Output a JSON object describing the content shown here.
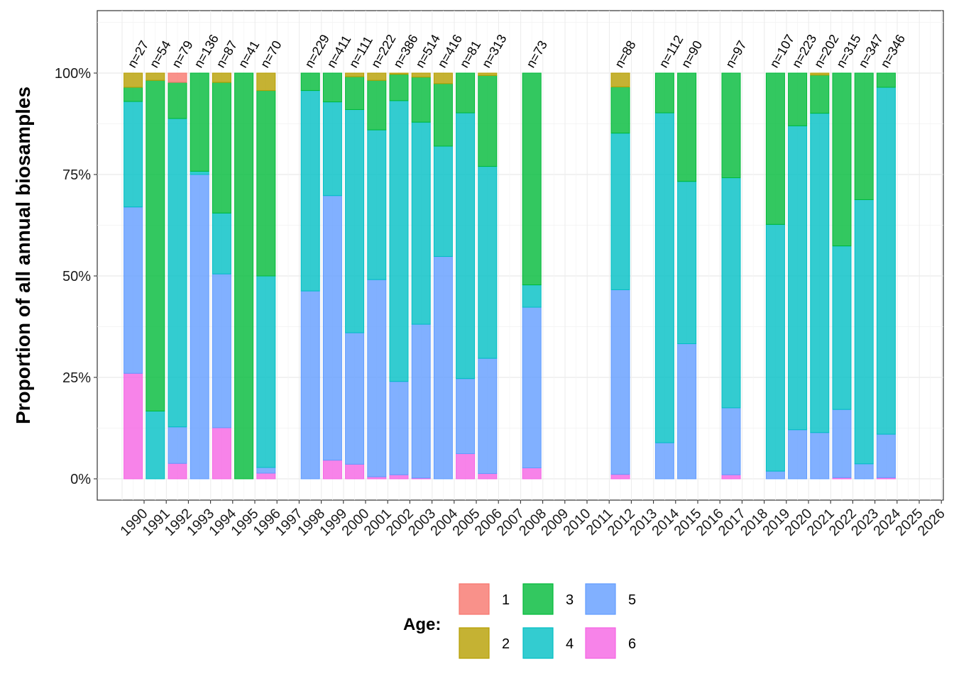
{
  "chart_data": {
    "type": "bar",
    "stacked": true,
    "title": "",
    "xlabel": "",
    "ylabel": "Proportion of all annual biosamples",
    "ylim": [
      0,
      1
    ],
    "yticks": [
      0,
      0.25,
      0.5,
      0.75,
      1
    ],
    "ytick_labels": [
      "0%",
      "25%",
      "50%",
      "75%",
      "100%"
    ],
    "x_categories": [
      "1990",
      "1991",
      "1992",
      "1993",
      "1994",
      "1995",
      "1996",
      "1997",
      "1998",
      "1999",
      "2000",
      "2001",
      "2002",
      "2003",
      "2004",
      "2005",
      "2006",
      "2007",
      "2008",
      "2009",
      "2010",
      "2011",
      "2012",
      "2013",
      "2014",
      "2015",
      "2016",
      "2017",
      "2018",
      "2019",
      "2020",
      "2021",
      "2022",
      "2023",
      "2024",
      "2025",
      "2026"
    ],
    "grid": true,
    "legend": {
      "title": "Age:",
      "position": "bottom",
      "entries": [
        {
          "key": "1",
          "label": "1",
          "color": "#F8766D"
        },
        {
          "key": "2",
          "label": "2",
          "color": "#B79F00"
        },
        {
          "key": "3",
          "label": "3",
          "color": "#00BA38"
        },
        {
          "key": "4",
          "label": "4",
          "color": "#00BFC4"
        },
        {
          "key": "5",
          "label": "5",
          "color": "#619CFF"
        },
        {
          "key": "6",
          "label": "6",
          "color": "#F564E3"
        }
      ]
    },
    "series_order_bottom_to_top": [
      "6",
      "5",
      "4",
      "3",
      "2",
      "1"
    ],
    "bars": [
      {
        "x": 0.5,
        "n_label": "n=27",
        "parts": {
          "6": 0.26,
          "5": 0.41,
          "4": 0.26,
          "3": 0.035,
          "2": 0.035,
          "1": 0
        }
      },
      {
        "x": 1.5,
        "n_label": "n=54",
        "parts": {
          "6": 0,
          "5": 0,
          "4": 0.167,
          "3": 0.815,
          "2": 0.018,
          "1": 0
        }
      },
      {
        "x": 2.5,
        "n_label": "n=79",
        "parts": {
          "6": 0.038,
          "5": 0.09,
          "4": 0.76,
          "3": 0.089,
          "2": 0,
          "1": 0.023
        }
      },
      {
        "x": 3.5,
        "n_label": "n=136",
        "parts": {
          "6": 0,
          "5": 0.75,
          "4": 0.008,
          "3": 0.242,
          "2": 0,
          "1": 0
        }
      },
      {
        "x": 4.5,
        "n_label": "n=87",
        "parts": {
          "6": 0.126,
          "5": 0.379,
          "4": 0.15,
          "3": 0.322,
          "2": 0.023,
          "1": 0
        }
      },
      {
        "x": 5.5,
        "n_label": "n=41",
        "parts": {
          "6": 0,
          "5": 0,
          "4": 0,
          "3": 1.0,
          "2": 0,
          "1": 0
        }
      },
      {
        "x": 6.5,
        "n_label": "n=70",
        "parts": {
          "6": 0.014,
          "5": 0.014,
          "4": 0.472,
          "3": 0.457,
          "2": 0.043,
          "1": 0
        }
      },
      {
        "x": 8.5,
        "n_label": "n=229",
        "parts": {
          "6": 0,
          "5": 0.463,
          "4": 0.494,
          "3": 0.043,
          "2": 0,
          "1": 0
        }
      },
      {
        "x": 9.5,
        "n_label": "n=411",
        "parts": {
          "6": 0.046,
          "5": 0.652,
          "4": 0.231,
          "3": 0.071,
          "2": 0,
          "1": 0
        }
      },
      {
        "x": 10.5,
        "n_label": "n=111",
        "parts": {
          "6": 0.036,
          "5": 0.324,
          "4": 0.55,
          "3": 0.081,
          "2": 0.009,
          "1": 0
        }
      },
      {
        "x": 11.5,
        "n_label": "n=222",
        "parts": {
          "6": 0.005,
          "5": 0.486,
          "4": 0.369,
          "3": 0.122,
          "2": 0.018,
          "1": 0
        }
      },
      {
        "x": 12.5,
        "n_label": "n=386",
        "parts": {
          "6": 0.01,
          "5": 0.23,
          "4": 0.692,
          "3": 0.065,
          "2": 0.003,
          "1": 0
        }
      },
      {
        "x": 13.5,
        "n_label": "n=514",
        "parts": {
          "6": 0.002,
          "5": 0.379,
          "4": 0.498,
          "3": 0.111,
          "2": 0.01,
          "1": 0
        }
      },
      {
        "x": 14.5,
        "n_label": "n=416",
        "parts": {
          "6": 0,
          "5": 0.548,
          "4": 0.272,
          "3": 0.154,
          "2": 0.026,
          "1": 0
        }
      },
      {
        "x": 15.5,
        "n_label": "n=81",
        "parts": {
          "6": 0.062,
          "5": 0.185,
          "4": 0.655,
          "3": 0.098,
          "2": 0,
          "1": 0
        }
      },
      {
        "x": 16.5,
        "n_label": "n=313",
        "parts": {
          "6": 0.013,
          "5": 0.284,
          "4": 0.473,
          "3": 0.224,
          "2": 0.006,
          "1": 0
        }
      },
      {
        "x": 18.5,
        "n_label": "n=73",
        "parts": {
          "6": 0.027,
          "5": 0.396,
          "4": 0.055,
          "3": 0.522,
          "2": 0,
          "1": 0
        }
      },
      {
        "x": 22.5,
        "n_label": "n=88",
        "parts": {
          "6": 0.011,
          "5": 0.455,
          "4": 0.386,
          "3": 0.114,
          "2": 0.034,
          "1": 0
        }
      },
      {
        "x": 24.5,
        "n_label": "n=112",
        "parts": {
          "6": 0,
          "5": 0.089,
          "4": 0.813,
          "3": 0.098,
          "2": 0,
          "1": 0
        }
      },
      {
        "x": 25.5,
        "n_label": "n=90",
        "parts": {
          "6": 0,
          "5": 0.333,
          "4": 0.4,
          "3": 0.267,
          "2": 0,
          "1": 0
        }
      },
      {
        "x": 27.5,
        "n_label": "n=97",
        "parts": {
          "6": 0.01,
          "5": 0.165,
          "4": 0.567,
          "3": 0.258,
          "2": 0,
          "1": 0
        }
      },
      {
        "x": 29.5,
        "n_label": "n=107",
        "parts": {
          "6": 0,
          "5": 0.019,
          "4": 0.608,
          "3": 0.373,
          "2": 0,
          "1": 0
        }
      },
      {
        "x": 30.5,
        "n_label": "n=223",
        "parts": {
          "6": 0,
          "5": 0.121,
          "4": 0.749,
          "3": 0.13,
          "2": 0,
          "1": 0
        }
      },
      {
        "x": 31.5,
        "n_label": "n=202",
        "parts": {
          "6": 0,
          "5": 0.114,
          "4": 0.787,
          "3": 0.094,
          "2": 0.005,
          "1": 0
        }
      },
      {
        "x": 32.5,
        "n_label": "n=315",
        "parts": {
          "6": 0.003,
          "5": 0.168,
          "4": 0.403,
          "3": 0.426,
          "2": 0,
          "1": 0
        }
      },
      {
        "x": 33.5,
        "n_label": "n=347",
        "parts": {
          "6": 0,
          "5": 0.037,
          "4": 0.651,
          "3": 0.312,
          "2": 0,
          "1": 0
        }
      },
      {
        "x": 34.5,
        "n_label": "n=346",
        "parts": {
          "6": 0.003,
          "5": 0.107,
          "4": 0.855,
          "3": 0.035,
          "2": 0,
          "1": 0
        }
      }
    ]
  }
}
